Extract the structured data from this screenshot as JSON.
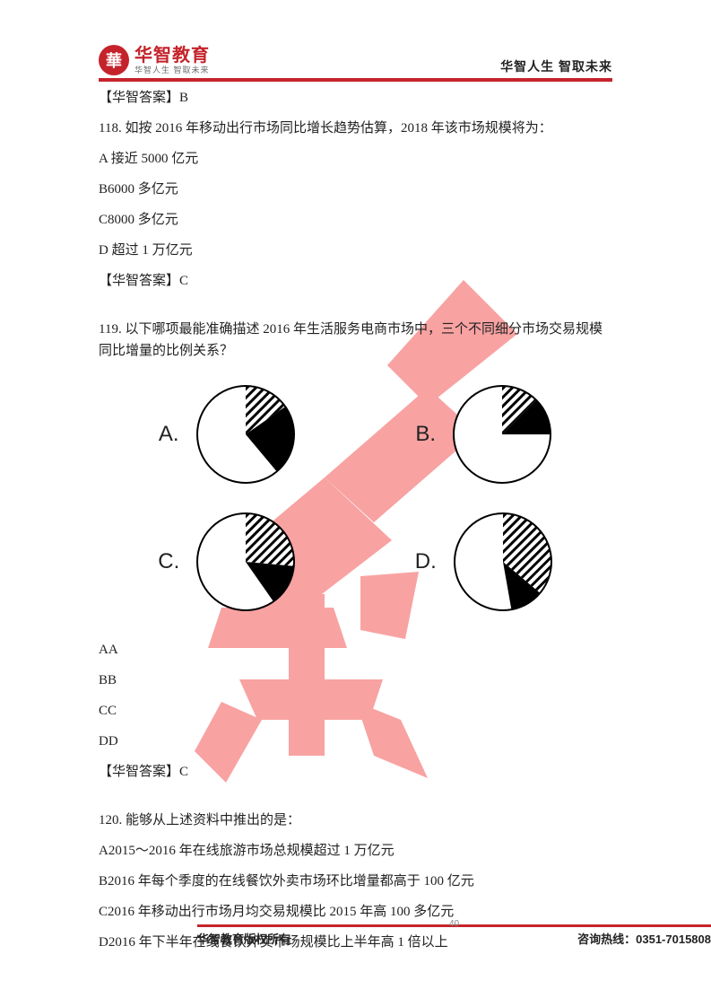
{
  "header": {
    "logo_glyph": "華",
    "logo_main": "华智教育",
    "logo_sub": "华智人生 智取未来",
    "right_text": "华智人生 智取未来"
  },
  "answer_brand": "【华智答案】",
  "q117_answer": "B",
  "q118": {
    "stem": "118. 如按 2016 年移动出行市场同比增长趋势估算，2018 年该市场规模将为：",
    "opt_a": "A 接近 5000 亿元",
    "opt_b": "B6000 多亿元",
    "opt_c": "C8000 多亿元",
    "opt_d": "D 超过 1 万亿元",
    "answer": "C"
  },
  "q119": {
    "stem": "119. 以下哪项最能准确描述 2016 年生活服务电商市场中，三个不同细分市场交易规模同比增量的比例关系？",
    "charts": {
      "A": {
        "label": "A.",
        "slices": [
          {
            "start": 0,
            "end": 55,
            "fill": "hatch"
          },
          {
            "start": 55,
            "end": 140,
            "fill": "black"
          },
          {
            "start": 140,
            "end": 360,
            "fill": "white"
          }
        ]
      },
      "B": {
        "label": "B.",
        "slices": [
          {
            "start": 0,
            "end": 45,
            "fill": "hatch"
          },
          {
            "start": 45,
            "end": 90,
            "fill": "black"
          },
          {
            "start": 90,
            "end": 360,
            "fill": "white"
          }
        ]
      },
      "C": {
        "label": "C.",
        "slices": [
          {
            "start": 0,
            "end": 95,
            "fill": "hatch"
          },
          {
            "start": 95,
            "end": 145,
            "fill": "black"
          },
          {
            "start": 145,
            "end": 360,
            "fill": "white"
          }
        ]
      },
      "D": {
        "label": "D.",
        "slices": [
          {
            "start": 0,
            "end": 130,
            "fill": "hatch"
          },
          {
            "start": 130,
            "end": 170,
            "fill": "black"
          },
          {
            "start": 170,
            "end": 360,
            "fill": "white"
          }
        ]
      }
    },
    "opt_aa": "AA",
    "opt_bb": "BB",
    "opt_cc": "CC",
    "opt_dd": "DD",
    "answer": "C"
  },
  "q120": {
    "stem": "120. 能够从上述资料中推出的是：",
    "opt_a": "A2015～2016 年在线旅游市场总规模超过 1 万亿元",
    "opt_b": "B2016 年每个季度的在线餐饮外卖市场环比增量都高于 100 亿元",
    "opt_c": "C2016 年移动出行市场月均交易规模比 2015 年高 100 多亿元",
    "opt_d": "D2016 年下半年在线餐饮外卖市场规模比上半年高 1 倍以上"
  },
  "footer": {
    "left": "华智教育版权所有",
    "page": "40",
    "right": "咨询热线：0351-7015808"
  },
  "style": {
    "brand_red": "#c5232b",
    "text_color": "#222222",
    "pie_stroke": "#000000",
    "pie_stroke_width": 2,
    "pie_radius": 54,
    "watermark_color": "#f04a4a"
  }
}
